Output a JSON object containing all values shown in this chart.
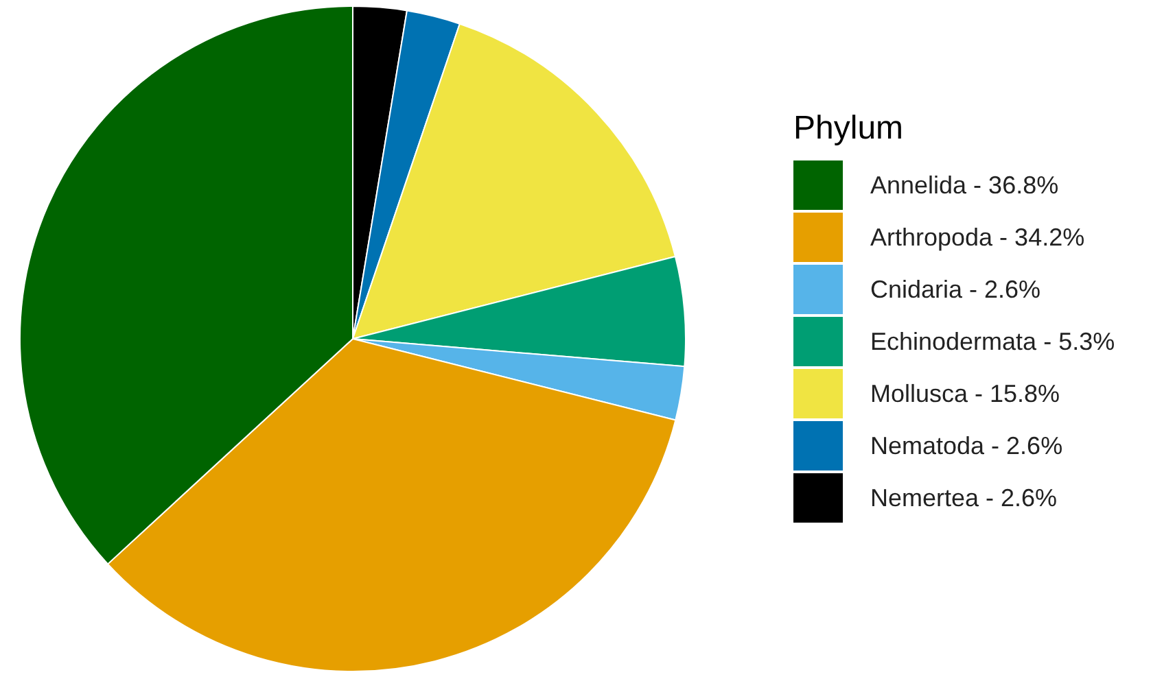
{
  "chart_data": {
    "type": "pie",
    "legend_title": "Phylum",
    "legend": "right",
    "categories": [
      "Annelida - 36.8%",
      "Arthropoda - 34.2%",
      "Cnidaria - 2.6%",
      "Echinodermata - 5.3%",
      "Mollusca - 15.8%",
      "Nematoda - 2.6%",
      "Nemertea - 2.6%"
    ],
    "values": [
      36.8,
      34.2,
      2.6,
      5.3,
      15.8,
      2.6,
      2.6
    ],
    "colors": [
      "#006400",
      "#e69f00",
      "#56b4e9",
      "#009e73",
      "#f0e442",
      "#0072b2",
      "#000000"
    ]
  }
}
